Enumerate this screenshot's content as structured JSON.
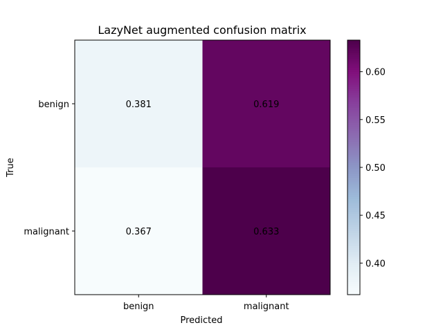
{
  "chart_data": {
    "type": "heatmap",
    "title": "LazyNet augmented confusion matrix",
    "xlabel": "Predicted",
    "ylabel": "True",
    "x_categories": [
      "benign",
      "malignant"
    ],
    "y_categories": [
      "benign",
      "malignant"
    ],
    "values": [
      [
        0.381,
        0.619
      ],
      [
        0.367,
        0.633
      ]
    ],
    "value_labels": [
      [
        "0.381",
        "0.619"
      ],
      [
        "0.367",
        "0.633"
      ]
    ],
    "colorbar": {
      "ticks": [
        "0.40",
        "0.45",
        "0.50",
        "0.55",
        "0.60"
      ],
      "range": [
        0.367,
        0.633
      ],
      "colormap": "BuPu",
      "colors": [
        "#f7fcfd",
        "#e0ecf4",
        "#bfd3e6",
        "#9ebcda",
        "#8c96c6",
        "#8c6bb1",
        "#88419d",
        "#810f7c",
        "#4d004b"
      ]
    }
  }
}
